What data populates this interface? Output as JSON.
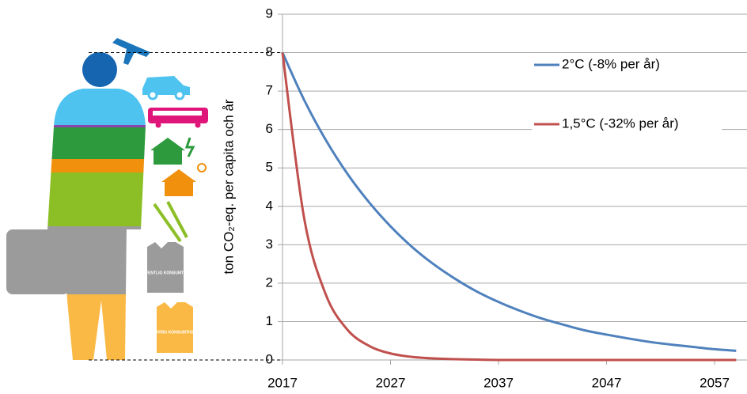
{
  "chart_data": {
    "type": "line",
    "y_label": "ton CO₂-eq. per capita och år",
    "x": [
      2017,
      2019,
      2021,
      2023,
      2025,
      2027,
      2029,
      2031,
      2033,
      2035,
      2037,
      2039,
      2041,
      2043,
      2045,
      2047,
      2049,
      2051,
      2053,
      2055,
      2057,
      2059
    ],
    "series": [
      {
        "name": "2°C  (-8% per år)",
        "color": "#4f81bd",
        "values": [
          8,
          6.77,
          5.73,
          4.85,
          4.11,
          3.48,
          2.94,
          2.49,
          2.11,
          1.78,
          1.51,
          1.28,
          1.08,
          0.92,
          0.77,
          0.66,
          0.56,
          0.47,
          0.4,
          0.34,
          0.28,
          0.24
        ]
      },
      {
        "name": "1,5°C  (-32% per år)",
        "color": "#c0504d",
        "values": [
          8,
          3.7,
          1.71,
          0.79,
          0.37,
          0.17,
          0.08,
          0.04,
          0.02,
          0.01,
          0,
          0,
          0,
          0,
          0,
          0,
          0,
          0,
          0,
          0,
          0,
          0
        ]
      }
    ],
    "xlim": [
      2017,
      2060
    ],
    "xticks": [
      2017,
      2027,
      2037,
      2047,
      2057
    ],
    "ylim": [
      0,
      9
    ],
    "yticks": [
      0,
      1,
      2,
      3,
      4,
      5,
      6,
      7,
      8,
      9
    ],
    "grid": true,
    "illustration_labels": [
      "OFFENTLIG KONSUMTION",
      "ÖVRIG KONSUMTION"
    ]
  }
}
